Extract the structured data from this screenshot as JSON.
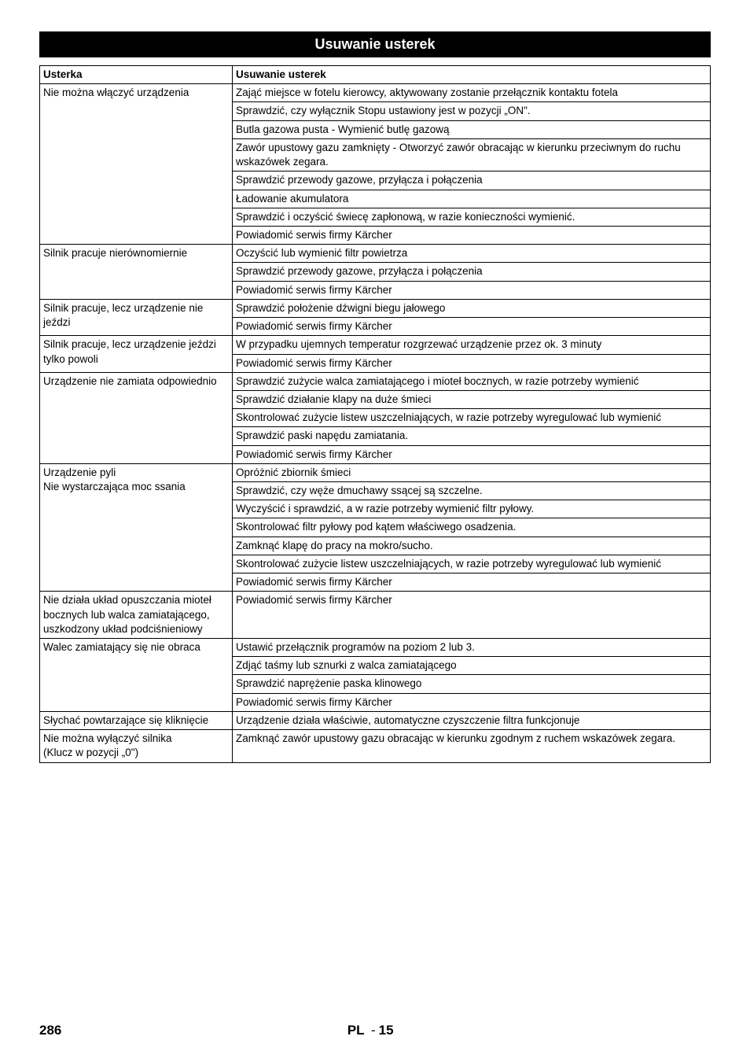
{
  "title": "Usuwanie usterek",
  "header_left": "Usterka",
  "header_right": "Usuwanie usterek",
  "rows": [
    {
      "fault": "Nie można włączyć urządzenia",
      "fixes": [
        "Zająć miejsce w fotelu kierowcy, aktywowany zostanie przełącznik kontaktu fotela",
        "Sprawdzić, czy wyłącznik Stopu ustawiony jest w pozycji „ON\".",
        "Butla gazowa pusta - Wymienić butlę gazową",
        "Zawór upustowy gazu zamknięty - Otworzyć zawór obracając w kierunku przeciwnym do ruchu wskazówek zegara.",
        "Sprawdzić przewody gazowe, przyłącza i połączenia",
        "Ładowanie akumulatora",
        "Sprawdzić i oczyścić świecę zapłonową, w razie konieczności wymienić.",
        "Powiadomić serwis firmy Kärcher"
      ]
    },
    {
      "fault": "Silnik pracuje nierównomiernie",
      "fixes": [
        "Oczyścić lub wymienić filtr powietrza",
        "Sprawdzić przewody gazowe, przyłącza i połączenia",
        "Powiadomić serwis firmy Kärcher"
      ]
    },
    {
      "fault": "Silnik pracuje, lecz urządzenie nie jeździ",
      "fixes": [
        "Sprawdzić położenie dźwigni biegu jałowego",
        "Powiadomić serwis firmy Kärcher"
      ]
    },
    {
      "fault": "Silnik pracuje, lecz urządzenie jeździ tylko powoli",
      "fixes": [
        "W przypadku ujemnych temperatur rozgrzewać urządzenie przez ok. 3 minuty",
        "Powiadomić serwis firmy Kärcher"
      ]
    },
    {
      "fault": "Urządzenie nie zamiata odpowiednio",
      "fixes": [
        "Sprawdzić zużycie walca zamiatającego i mioteł bocznych, w razie potrzeby wymienić",
        "Sprawdzić działanie klapy na duże śmieci",
        "Skontrolować zużycie listew uszczelniających, w razie potrzeby wyregulować lub wymienić",
        "Sprawdzić paski napędu zamiatania.",
        "Powiadomić serwis firmy Kärcher"
      ]
    },
    {
      "fault": "Urządzenie pyli\nNie wystarczająca moc ssania",
      "fixes": [
        "Opróżnić zbiornik śmieci",
        "Sprawdzić, czy węże dmuchawy ssącej są szczelne.",
        "Wyczyścić i sprawdzić, a w razie potrzeby wymienić filtr pyłowy.",
        "Skontrolować filtr pyłowy pod kątem właściwego osadzenia.",
        "Zamknąć klapę do pracy na mokro/sucho.",
        "Skontrolować zużycie listew uszczelniających, w razie potrzeby wyregulować lub wymienić",
        "Powiadomić serwis firmy Kärcher"
      ]
    },
    {
      "fault": "Nie działa układ opuszczania mioteł bocznych lub walca zamiatającego, uszkodzony układ podciśnieniowy",
      "fixes": [
        "Powiadomić serwis firmy Kärcher"
      ]
    },
    {
      "fault": "Walec zamiatający się nie obraca",
      "fixes": [
        "Ustawić przełącznik programów na poziom 2 lub 3.",
        "Zdjąć taśmy lub sznurki z walca zamiatającego",
        "Sprawdzić naprężenie paska klinowego",
        "Powiadomić serwis firmy Kärcher"
      ]
    },
    {
      "fault": "Słychać powtarzające się kliknięcie",
      "fixes": [
        "Urządzenie działa właściwie, automatyczne czyszczenie filtra funkcjonuje"
      ]
    },
    {
      "fault": "Nie można wyłączyć silnika\n(Klucz w pozycji „0\")",
      "fixes": [
        "Zamknąć zawór upustowy gazu obracając w kierunku zgodnym z ruchem wskazówek zegara."
      ]
    }
  ],
  "footer": {
    "page_left": "286",
    "lang": "PL",
    "page_sub": "15"
  }
}
